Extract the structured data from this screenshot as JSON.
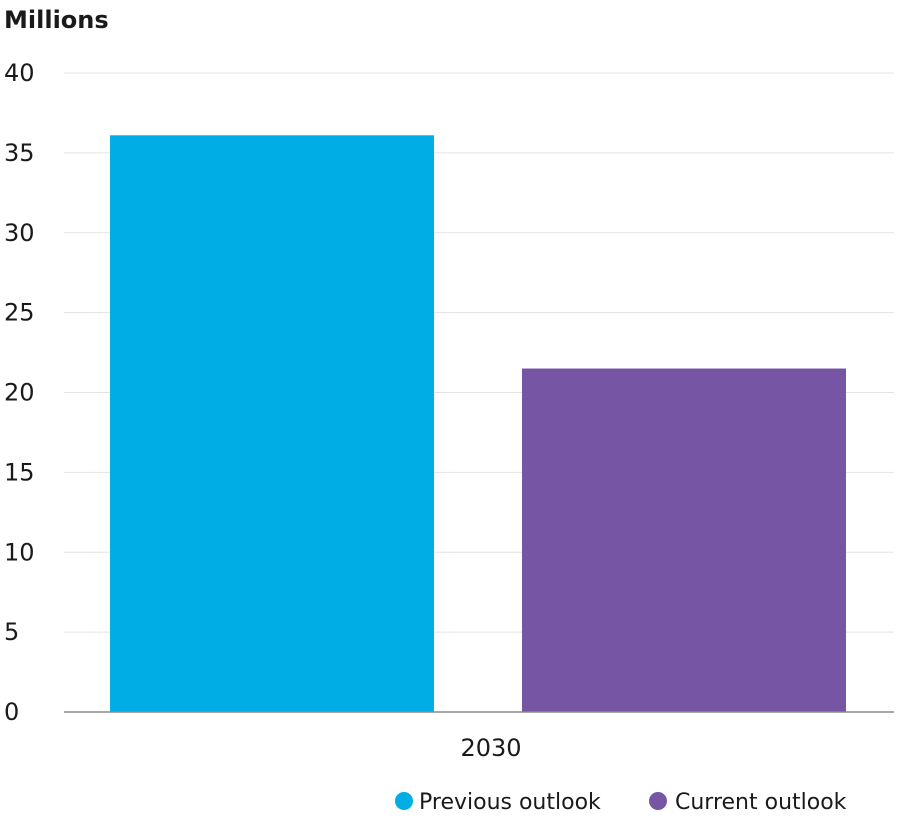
{
  "chart_data": {
    "type": "bar",
    "ylabel": "Millions",
    "xlabel": "",
    "categories": [
      "2030"
    ],
    "ylim": [
      0,
      40
    ],
    "yticks": [
      0,
      5,
      10,
      15,
      20,
      25,
      30,
      35,
      40
    ],
    "grid": true,
    "legend_position": "bottom-right",
    "series": [
      {
        "name": "Previous outlook",
        "values": [
          36.1
        ],
        "color": "#00ADE4"
      },
      {
        "name": "Current outlook",
        "values": [
          21.5
        ],
        "color": "#7656A4"
      }
    ]
  }
}
